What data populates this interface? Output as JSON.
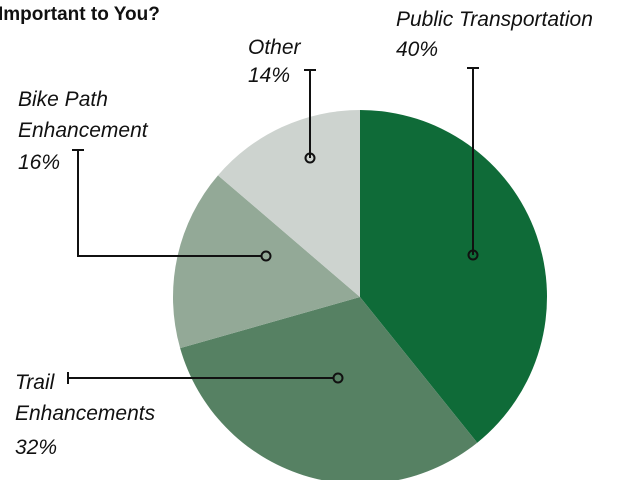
{
  "chart_data": {
    "type": "pie",
    "title": "Important to You?",
    "categories": [
      "Public Transportation",
      "Trail Enhancements",
      "Bike Path Enhancement",
      "Other"
    ],
    "values": [
      40,
      32,
      16,
      14
    ],
    "value_labels": [
      "40%",
      "32%",
      "16%",
      "14%"
    ],
    "colors": [
      "#0f6b38",
      "#568163",
      "#93a997",
      "#cdd3cf"
    ]
  }
}
